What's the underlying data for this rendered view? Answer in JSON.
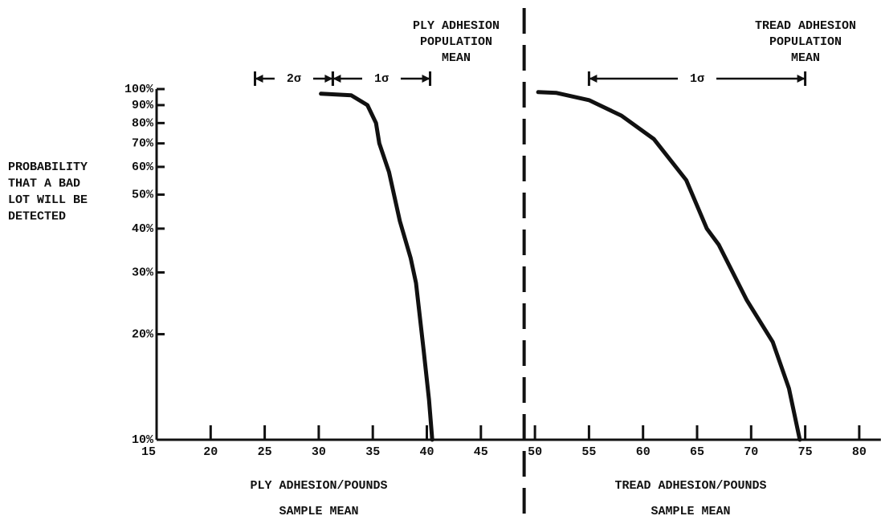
{
  "chart_data": {
    "type": "line",
    "yscale": "log",
    "ylabel": [
      "PROBABILITY",
      "THAT A BAD",
      "LOT WILL BE",
      "DETECTED"
    ],
    "xlabels": [
      {
        "title": "PLY ADHESION/POUNDS",
        "subtitle": "SAMPLE MEAN"
      },
      {
        "title": "TREAD ADHESION/POUNDS",
        "subtitle": "SAMPLE MEAN"
      }
    ],
    "xlim": [
      15,
      82
    ],
    "ylim": [
      10,
      100
    ],
    "xticks": [
      15,
      20,
      25,
      30,
      35,
      40,
      45,
      50,
      55,
      60,
      65,
      70,
      75,
      80
    ],
    "yticks": [
      {
        "value": 10,
        "label": "10%"
      },
      {
        "value": 20,
        "label": "20%"
      },
      {
        "value": 30,
        "label": "30%"
      },
      {
        "value": 40,
        "label": "40%"
      },
      {
        "value": 50,
        "label": "50%"
      },
      {
        "value": 60,
        "label": "60%"
      },
      {
        "value": 70,
        "label": "70%"
      },
      {
        "value": 80,
        "label": "80%"
      },
      {
        "value": 90,
        "label": "90%"
      },
      {
        "value": 100,
        "label": "100%"
      }
    ],
    "divider": 49,
    "series": [
      {
        "color": "#111111",
        "x": [
          30.2,
          33,
          34.5,
          35.3,
          35.6,
          36.5,
          37.5,
          38.5,
          39,
          39.7,
          40.2,
          40.5
        ],
        "values": [
          97,
          96,
          90,
          80,
          70,
          58,
          42,
          33,
          28,
          18,
          13,
          10
        ]
      },
      {
        "color": "#111111",
        "x": [
          50.3,
          52,
          55,
          58,
          61,
          64,
          65.9,
          67,
          69.6,
          72,
          73.5,
          74.5
        ],
        "values": [
          98,
          97.5,
          93,
          84,
          72,
          55,
          40,
          36,
          25,
          19,
          14,
          10
        ]
      }
    ],
    "annotations": [
      {
        "text": [
          "PLY ADHESION",
          "POPULATION",
          "MEAN"
        ]
      },
      {
        "text": [
          "TREAD ADHESION",
          "POPULATION",
          "MEAN"
        ]
      }
    ],
    "intervals": [
      {
        "label": "2σ",
        "from": 24.1,
        "to": 31.3
      },
      {
        "label": "1σ",
        "from": 31.3,
        "to": 40.3
      },
      {
        "label": "1σ",
        "from": 55,
        "to": 75
      }
    ]
  }
}
